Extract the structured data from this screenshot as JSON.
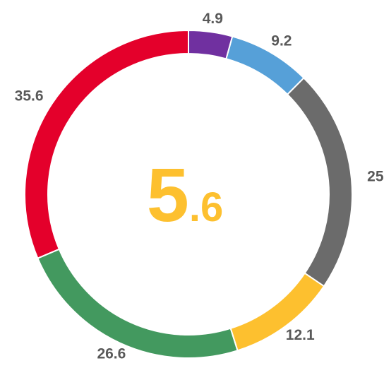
{
  "chart_data": {
    "type": "donut",
    "values": [
      4.9,
      9.2,
      25.0,
      12.1,
      26.6,
      35.6
    ],
    "value_labels": [
      "4.9",
      "9.2",
      "25.0",
      "12.1",
      "26.6",
      "35.6"
    ],
    "colors": [
      "#7030a0",
      "#56a0d8",
      "#6b6b6b",
      "#fdc02f",
      "#43995f",
      "#e4002b"
    ],
    "center_label": {
      "main": "5",
      "decimal": ".6",
      "color": "#fdc02f"
    }
  }
}
